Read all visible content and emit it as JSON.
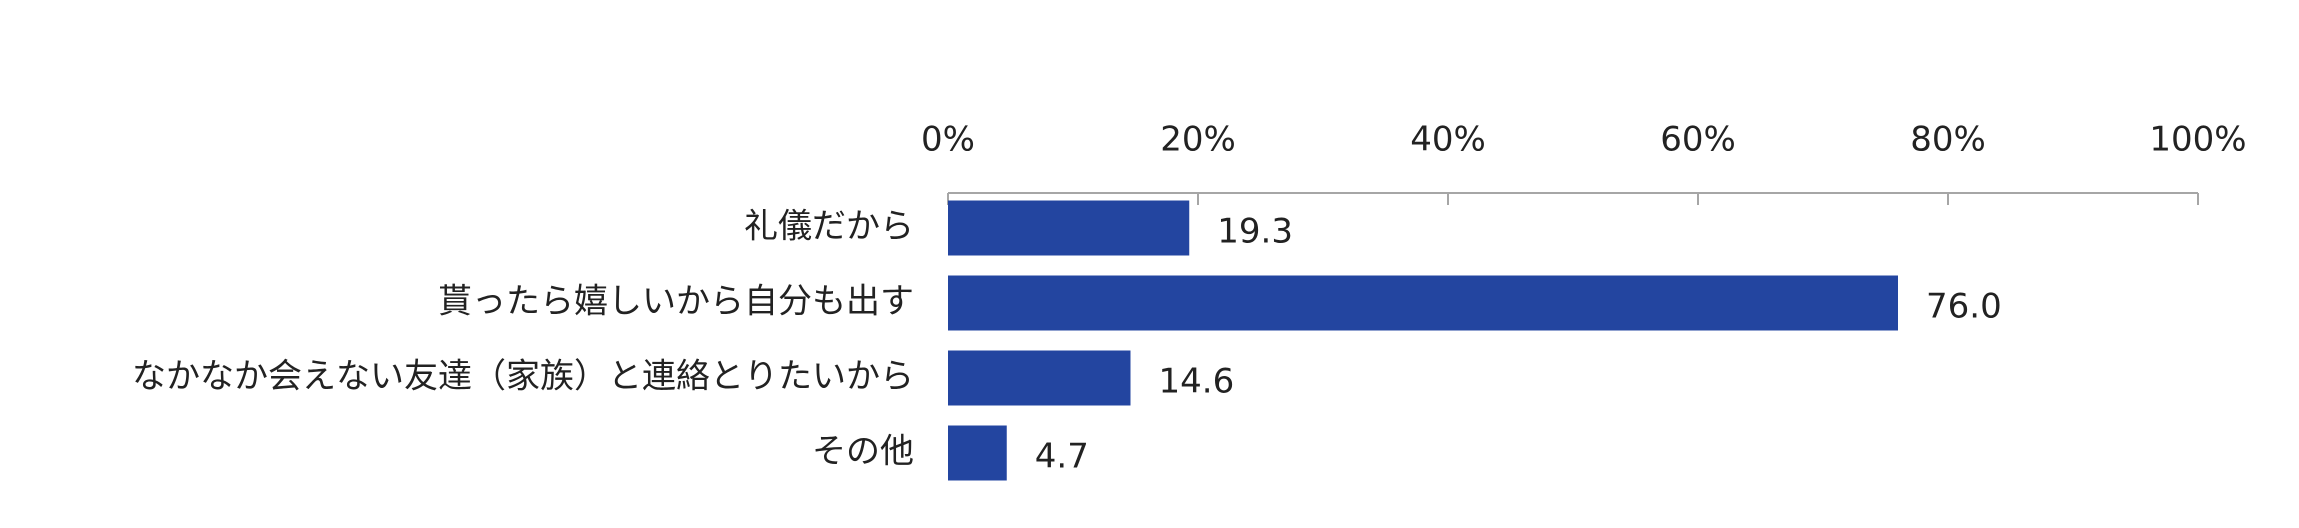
{
  "chart_data": {
    "type": "hbar",
    "categories": [
      "礼儀だから",
      "貰ったら嬉しいから自分も出す",
      "なかなか会えない友達（家族）と連絡とりたいから",
      "その他"
    ],
    "values": [
      19.3,
      76.0,
      14.6,
      4.7
    ],
    "value_labels": [
      "19.3",
      "76.0",
      "14.6",
      "4.7"
    ],
    "color": "#2345a0",
    "xlim": [
      0,
      100
    ],
    "xticks": [
      {
        "value": 0,
        "label": "0%"
      },
      {
        "value": 20,
        "label": "20%"
      },
      {
        "value": 40,
        "label": "40%"
      },
      {
        "value": 60,
        "label": "60%"
      },
      {
        "value": 80,
        "label": "80%"
      },
      {
        "value": 100,
        "label": "100%"
      }
    ]
  }
}
